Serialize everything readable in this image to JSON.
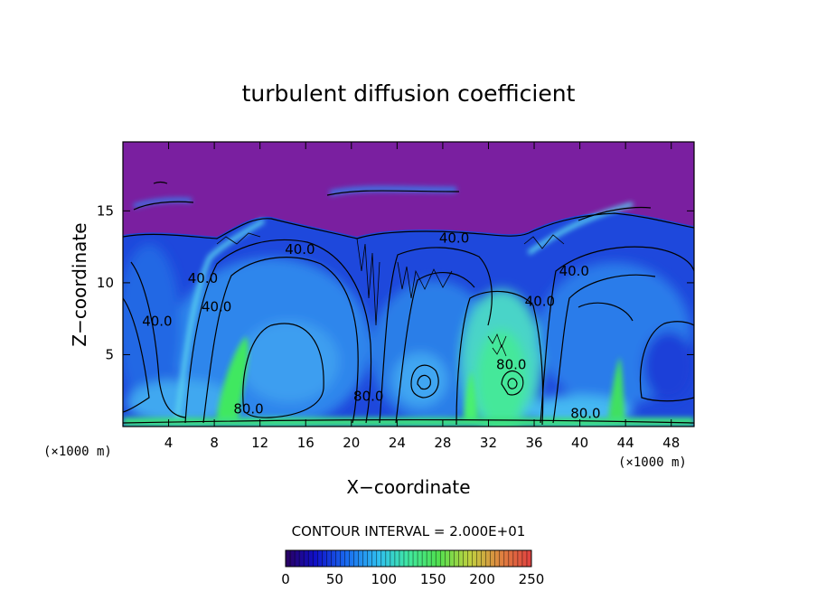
{
  "chart_data": {
    "type": "heatmap",
    "title": "turbulent diffusion coefficient",
    "xlabel": "X−coordinate",
    "ylabel": "Z−coordinate",
    "x_unit": "(×1000 m)",
    "y_unit": "(×1000 m)",
    "xlim": [
      0,
      50
    ],
    "ylim": [
      0,
      19.8
    ],
    "x_ticks": [
      4,
      8,
      12,
      16,
      20,
      24,
      28,
      32,
      36,
      40,
      44,
      48
    ],
    "y_ticks": [
      5,
      10,
      15
    ],
    "contour_interval_text": "CONTOUR INTERVAL = 2.000E+01",
    "contour_interval": 20,
    "contour_labels": [
      {
        "text": "40.0",
        "x": 3.0,
        "z": 7.0
      },
      {
        "text": "40.0",
        "x": 7.0,
        "z": 10.0
      },
      {
        "text": "40.0",
        "x": 8.2,
        "z": 8.0
      },
      {
        "text": "40.0",
        "x": 15.5,
        "z": 12.0
      },
      {
        "text": "40.0",
        "x": 29.0,
        "z": 12.8
      },
      {
        "text": "40.0",
        "x": 36.5,
        "z": 8.4
      },
      {
        "text": "40.0",
        "x": 39.5,
        "z": 10.5
      },
      {
        "text": "80.0",
        "x": 11.0,
        "z": 0.9
      },
      {
        "text": "80.0",
        "x": 21.5,
        "z": 1.8
      },
      {
        "text": "80.0",
        "x": 34.0,
        "z": 4.0
      },
      {
        "text": "80.0",
        "x": 40.5,
        "z": 0.6
      }
    ],
    "colorbar": {
      "min": 0,
      "max": 250,
      "ticks": [
        0,
        50,
        100,
        150,
        200,
        250
      ],
      "colors": [
        "#2a0060",
        "#1010c8",
        "#1a6cf0",
        "#30c0f0",
        "#40e8a0",
        "#50e050",
        "#c0d040",
        "#e08040",
        "#e04040"
      ]
    },
    "colors": {
      "background": "#7a1fa0",
      "core": "#1a3ce0",
      "mid": "#2c8cf0",
      "high": "#58d8f0",
      "peak": "#3ee870",
      "max": "#80f030"
    }
  }
}
